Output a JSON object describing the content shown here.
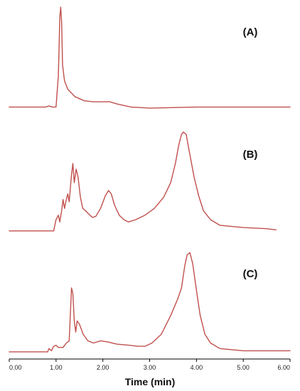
{
  "chart_data": {
    "type": "line",
    "xlabel": "Time (min)",
    "ylabel": "",
    "xlim": [
      0,
      6
    ],
    "grid": false,
    "line_color": "#c0504d",
    "x_ticks": [
      "0.00",
      "1.00",
      "2.00",
      "3.00",
      "4.00",
      "5.00",
      "6.00"
    ],
    "panels": [
      {
        "label": "(A)",
        "points": [
          [
            0.0,
            0.05
          ],
          [
            0.78,
            0.05
          ],
          [
            0.85,
            0.06
          ],
          [
            0.92,
            0.05
          ],
          [
            1.0,
            0.05
          ],
          [
            1.05,
            0.35
          ],
          [
            1.08,
            0.9
          ],
          [
            1.1,
            1.0
          ],
          [
            1.12,
            0.85
          ],
          [
            1.14,
            0.45
          ],
          [
            1.18,
            0.3
          ],
          [
            1.25,
            0.22
          ],
          [
            1.4,
            0.15
          ],
          [
            1.6,
            0.11
          ],
          [
            1.8,
            0.1
          ],
          [
            2.0,
            0.1
          ],
          [
            2.15,
            0.1
          ],
          [
            2.3,
            0.08
          ],
          [
            2.6,
            0.05
          ],
          [
            3.0,
            0.04
          ],
          [
            4.0,
            0.05
          ],
          [
            5.0,
            0.05
          ],
          [
            6.0,
            0.05
          ]
        ]
      },
      {
        "label": "(B)",
        "points": [
          [
            0.0,
            0.02
          ],
          [
            0.95,
            0.02
          ],
          [
            1.0,
            0.12
          ],
          [
            1.05,
            0.16
          ],
          [
            1.08,
            0.1
          ],
          [
            1.12,
            0.2
          ],
          [
            1.15,
            0.3
          ],
          [
            1.18,
            0.22
          ],
          [
            1.22,
            0.3
          ],
          [
            1.25,
            0.35
          ],
          [
            1.28,
            0.28
          ],
          [
            1.33,
            0.52
          ],
          [
            1.36,
            0.62
          ],
          [
            1.39,
            0.45
          ],
          [
            1.43,
            0.57
          ],
          [
            1.47,
            0.5
          ],
          [
            1.52,
            0.32
          ],
          [
            1.57,
            0.22
          ],
          [
            1.63,
            0.2
          ],
          [
            1.7,
            0.17
          ],
          [
            1.78,
            0.14
          ],
          [
            1.85,
            0.15
          ],
          [
            1.95,
            0.22
          ],
          [
            2.05,
            0.33
          ],
          [
            2.12,
            0.38
          ],
          [
            2.18,
            0.35
          ],
          [
            2.25,
            0.25
          ],
          [
            2.35,
            0.16
          ],
          [
            2.45,
            0.12
          ],
          [
            2.55,
            0.1
          ],
          [
            2.7,
            0.12
          ],
          [
            2.9,
            0.16
          ],
          [
            3.1,
            0.22
          ],
          [
            3.3,
            0.32
          ],
          [
            3.45,
            0.45
          ],
          [
            3.55,
            0.62
          ],
          [
            3.62,
            0.78
          ],
          [
            3.68,
            0.88
          ],
          [
            3.72,
            0.9
          ],
          [
            3.78,
            0.88
          ],
          [
            3.85,
            0.72
          ],
          [
            3.95,
            0.5
          ],
          [
            4.05,
            0.33
          ],
          [
            4.15,
            0.2
          ],
          [
            4.3,
            0.12
          ],
          [
            4.5,
            0.07
          ],
          [
            5.0,
            0.05
          ],
          [
            5.5,
            0.04
          ],
          [
            5.7,
            0.03
          ]
        ]
      },
      {
        "label": "(C)",
        "points": [
          [
            0.0,
            0.02
          ],
          [
            0.82,
            0.02
          ],
          [
            0.85,
            0.05
          ],
          [
            0.9,
            0.03
          ],
          [
            0.95,
            0.07
          ],
          [
            1.0,
            0.08
          ],
          [
            1.05,
            0.06
          ],
          [
            1.15,
            0.06
          ],
          [
            1.22,
            0.1
          ],
          [
            1.28,
            0.12
          ],
          [
            1.33,
            0.6
          ],
          [
            1.36,
            0.55
          ],
          [
            1.39,
            0.3
          ],
          [
            1.42,
            0.2
          ],
          [
            1.45,
            0.3
          ],
          [
            1.5,
            0.27
          ],
          [
            1.58,
            0.18
          ],
          [
            1.68,
            0.12
          ],
          [
            1.8,
            0.1
          ],
          [
            1.95,
            0.12
          ],
          [
            2.1,
            0.11
          ],
          [
            2.3,
            0.09
          ],
          [
            2.55,
            0.08
          ],
          [
            2.75,
            0.07
          ],
          [
            2.9,
            0.07
          ],
          [
            3.05,
            0.1
          ],
          [
            3.25,
            0.18
          ],
          [
            3.45,
            0.35
          ],
          [
            3.6,
            0.5
          ],
          [
            3.68,
            0.6
          ],
          [
            3.75,
            0.8
          ],
          [
            3.8,
            0.9
          ],
          [
            3.86,
            0.92
          ],
          [
            3.92,
            0.82
          ],
          [
            4.0,
            0.58
          ],
          [
            4.08,
            0.35
          ],
          [
            4.18,
            0.18
          ],
          [
            4.3,
            0.1
          ],
          [
            4.5,
            0.05
          ],
          [
            5.0,
            0.03
          ],
          [
            6.0,
            0.03
          ]
        ]
      }
    ]
  }
}
